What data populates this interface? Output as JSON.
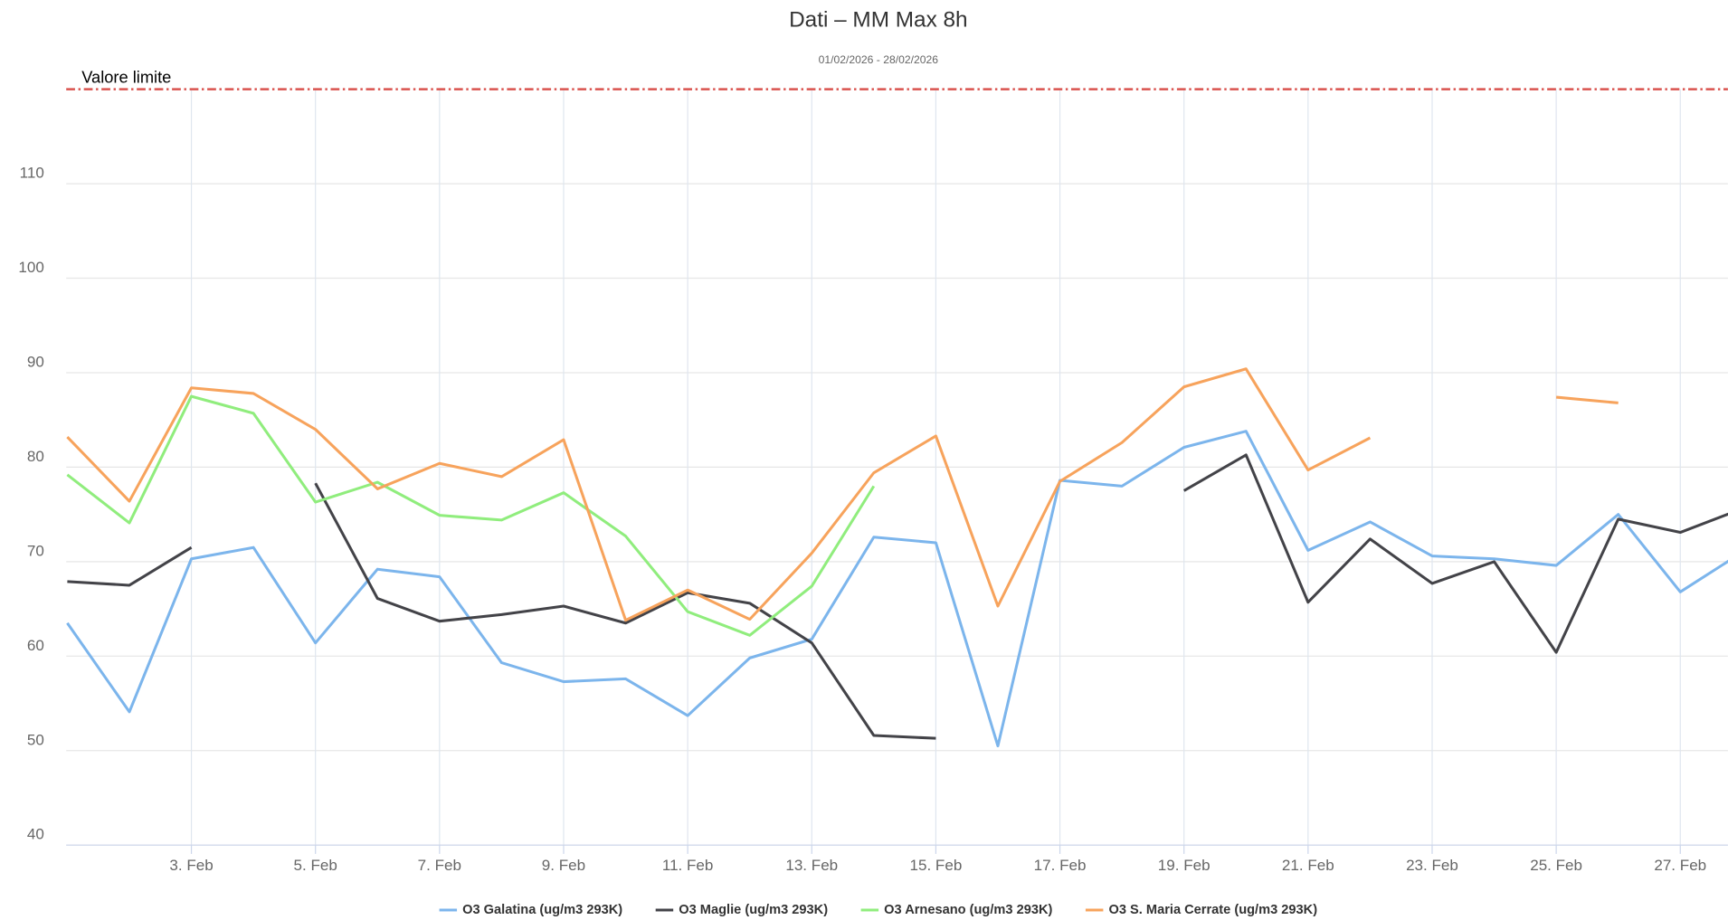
{
  "chart_data": {
    "type": "line",
    "title": "Dati – MM Max 8h",
    "subtitle": "01/02/2026 - 28/02/2026",
    "categories": [
      null,
      null,
      "3. Feb",
      null,
      "5. Feb",
      null,
      "7. Feb",
      null,
      "9. Feb",
      null,
      "11. Feb",
      null,
      "13. Feb",
      null,
      "15. Feb",
      null,
      "17. Feb",
      null,
      "19. Feb",
      null,
      "21. Feb",
      null,
      "23. Feb",
      null,
      "25. Feb",
      null,
      "27. Feb",
      null
    ],
    "series": [
      {
        "name": "O3 Galatina (ug/m3 293K)",
        "color": "#7cb5ec",
        "values": [
          63.5,
          54.1,
          70.3,
          71.5,
          61.4,
          69.2,
          68.4,
          59.3,
          57.3,
          57.6,
          53.7,
          59.8,
          61.8,
          72.6,
          72.0,
          50.5,
          78.6,
          78.0,
          82.1,
          83.8,
          71.2,
          74.2,
          70.6,
          70.3,
          69.6,
          75.0,
          66.8,
          71.0
        ]
      },
      {
        "name": "O3 Maglie (ug/m3 293K)",
        "color": "#434348",
        "values": [
          67.9,
          67.5,
          71.5,
          null,
          78.3,
          66.1,
          63.7,
          64.4,
          65.3,
          63.5,
          66.7,
          65.6,
          61.4,
          51.6,
          51.3,
          null,
          null,
          null,
          77.5,
          81.3,
          65.7,
          72.4,
          67.7,
          70.0,
          60.4,
          74.5,
          73.1,
          75.6
        ]
      },
      {
        "name": "O3 Arnesano (ug/m3 293K)",
        "color": "#90ed7d",
        "values": [
          79.2,
          74.1,
          87.5,
          85.7,
          76.3,
          78.4,
          74.9,
          74.4,
          77.3,
          72.7,
          64.7,
          62.2,
          67.4,
          78.0,
          null,
          null,
          null,
          null,
          null,
          null,
          null,
          null,
          null,
          null,
          null,
          null,
          null,
          null
        ]
      },
      {
        "name": "O3 S. Maria Cerrate (ug/m3 293K)",
        "color": "#f7a35c",
        "values": [
          83.2,
          76.4,
          88.4,
          87.8,
          84.0,
          77.7,
          80.4,
          79.0,
          82.9,
          63.8,
          67.0,
          63.9,
          70.9,
          79.4,
          83.3,
          65.3,
          78.5,
          82.6,
          88.5,
          90.4,
          79.7,
          83.1,
          null,
          null,
          87.4,
          86.8,
          null,
          null
        ]
      }
    ],
    "ylim": [
      40,
      120
    ],
    "yticks": [
      40,
      50,
      60,
      70,
      80,
      90,
      100,
      110
    ],
    "grid": true,
    "limit": {
      "value": 120,
      "label": "Valore limite",
      "color": "#d9534f"
    },
    "legend": "bottom"
  }
}
